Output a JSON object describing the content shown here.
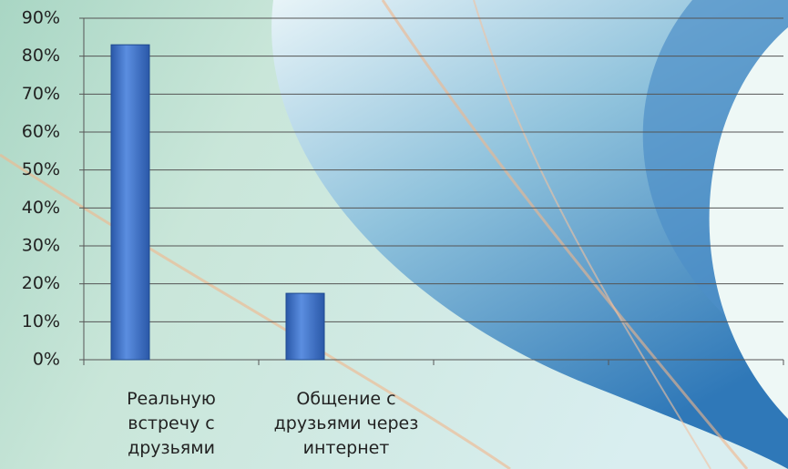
{
  "chart_data": {
    "type": "bar",
    "categories": [
      "Реальную встречу с друзьями",
      "Общение с друзьями через интернет",
      null,
      null
    ],
    "values": [
      83,
      17.5,
      null,
      null
    ],
    "color": "#3b6fc2",
    "ylim": [
      0,
      90
    ],
    "yticks": [
      {
        "value": 0,
        "label": "0%"
      },
      {
        "value": 10,
        "label": "10%"
      },
      {
        "value": 20,
        "label": "20%"
      },
      {
        "value": 30,
        "label": "30%"
      },
      {
        "value": 40,
        "label": "40%"
      },
      {
        "value": 50,
        "label": "50%"
      },
      {
        "value": 60,
        "label": "60%"
      },
      {
        "value": 70,
        "label": "70%"
      },
      {
        "value": 80,
        "label": "80%"
      },
      {
        "value": 90,
        "label": "90%"
      }
    ],
    "grid": true
  }
}
